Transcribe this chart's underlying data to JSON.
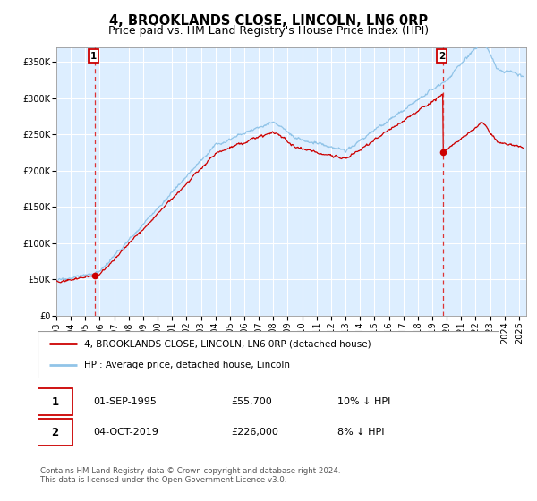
{
  "title": "4, BROOKLANDS CLOSE, LINCOLN, LN6 0RP",
  "subtitle": "Price paid vs. HM Land Registry's House Price Index (HPI)",
  "ylim": [
    0,
    370000
  ],
  "yticks": [
    0,
    50000,
    100000,
    150000,
    200000,
    250000,
    300000,
    350000
  ],
  "ytick_labels": [
    "£0",
    "£50K",
    "£100K",
    "£150K",
    "£200K",
    "£250K",
    "£300K",
    "£350K"
  ],
  "hpi_color": "#91c4e8",
  "price_color": "#cc0000",
  "dashed_color": "#dd3333",
  "plot_bg_color": "#ddeeff",
  "grid_color": "#ffffff",
  "bg_color": "#ffffff",
  "point1_x": 1995.67,
  "point1_y": 55700,
  "point2_x": 2019.75,
  "point2_y": 226000,
  "legend_label1": "4, BROOKLANDS CLOSE, LINCOLN, LN6 0RP (detached house)",
  "legend_label2": "HPI: Average price, detached house, Lincoln",
  "table_row1": [
    "1",
    "01-SEP-1995",
    "£55,700",
    "10% ↓ HPI"
  ],
  "table_row2": [
    "2",
    "04-OCT-2019",
    "£226,000",
    "8% ↓ HPI"
  ],
  "footer": "Contains HM Land Registry data © Crown copyright and database right 2024.\nThis data is licensed under the Open Government Licence v3.0.",
  "title_fontsize": 10.5,
  "subtitle_fontsize": 9,
  "tick_fontsize": 7,
  "xmin": 1993,
  "xmax": 2025.5,
  "xticks": [
    1993,
    1994,
    1995,
    1996,
    1997,
    1998,
    1999,
    2000,
    2001,
    2002,
    2003,
    2004,
    2005,
    2006,
    2007,
    2008,
    2009,
    2010,
    2011,
    2012,
    2013,
    2014,
    2015,
    2016,
    2017,
    2018,
    2019,
    2020,
    2021,
    2022,
    2023,
    2024,
    2025
  ]
}
